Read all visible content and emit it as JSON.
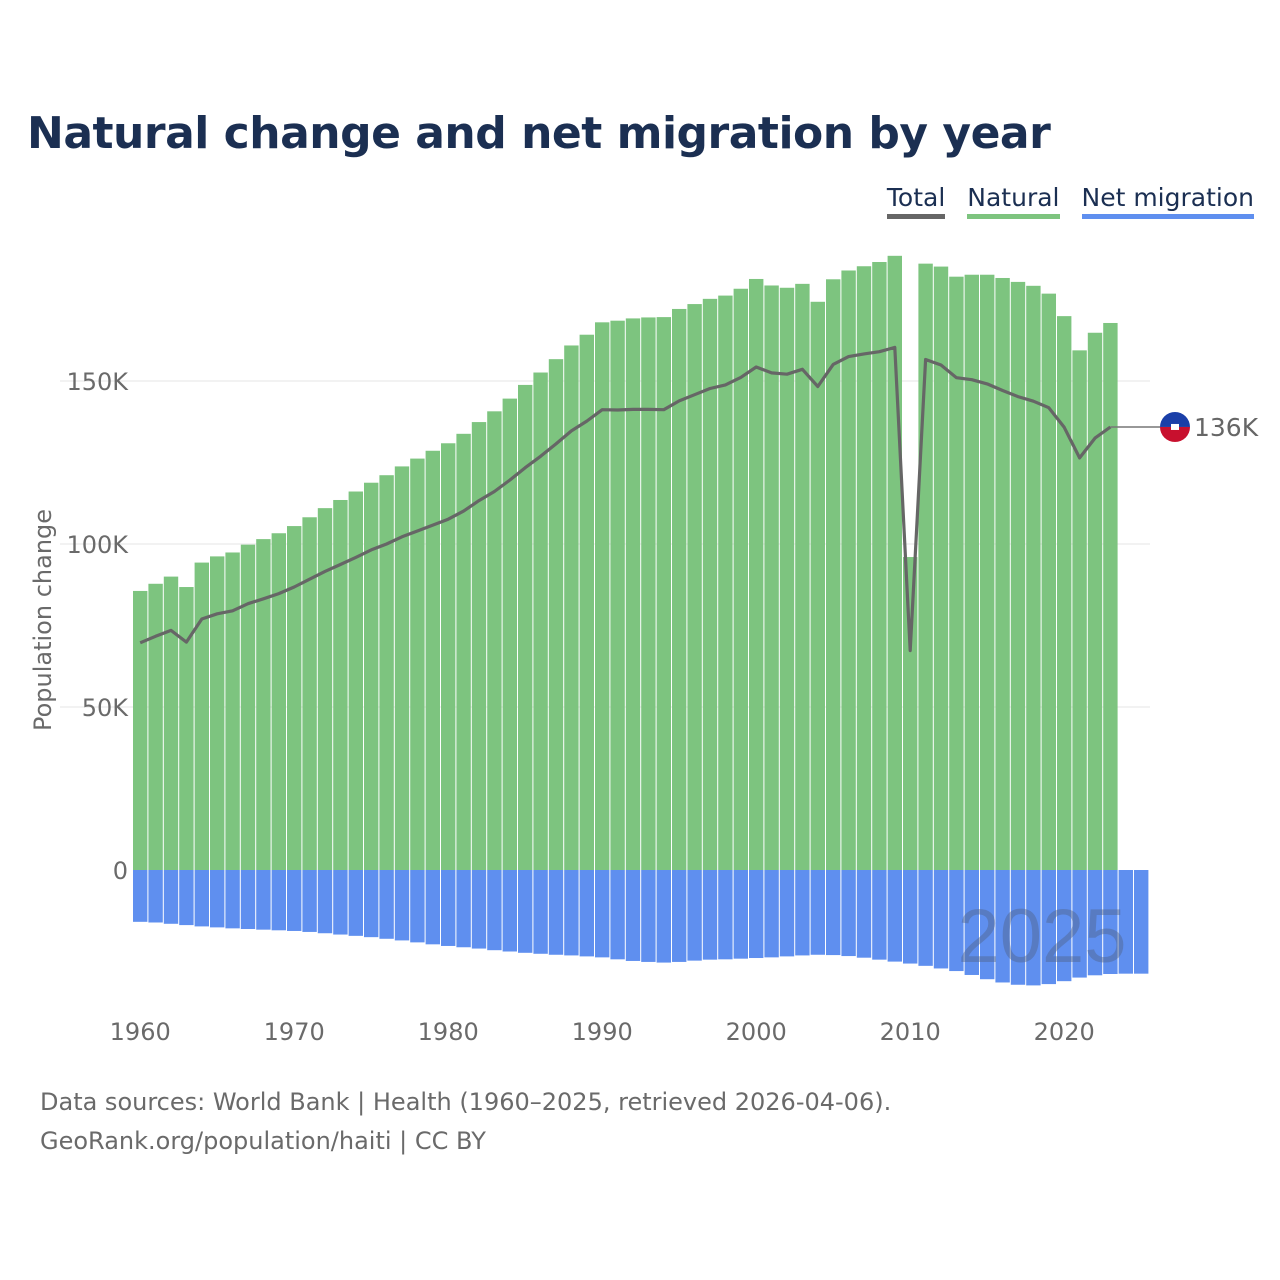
{
  "title": "Natural change and net migration by year",
  "legend": {
    "total": "Total",
    "natural": "Natural",
    "net_migration": "Net migration"
  },
  "colors": {
    "total": "#666666",
    "natural": "#7dc47f",
    "net_migration": "#5f8fef",
    "title": "#1b2f52"
  },
  "footer": {
    "source": "Data sources: World Bank | Health (1960–2025, retrieved 2026-04-06).",
    "credit": "GeoRank.org/population/haiti | CC BY"
  },
  "watermark": "2025",
  "end_label": "136K",
  "flag_icon": "haiti-flag-icon",
  "chart_data": {
    "type": "bar",
    "title": "Natural change and net migration by year",
    "xlabel": "",
    "ylabel": "Population change",
    "ylim": [
      -36000,
      195000
    ],
    "yticks": [
      0,
      50000,
      100000,
      150000
    ],
    "ytick_labels": [
      "0",
      "50K",
      "100K",
      "150K"
    ],
    "xticks": [
      1960,
      1970,
      1980,
      1990,
      2000,
      2010,
      2020
    ],
    "xtick_labels": [
      "1960",
      "1970",
      "1980",
      "1990",
      "2000",
      "2010",
      "2020"
    ],
    "grid": true,
    "legend_position": "top-right",
    "stacked": true,
    "categories": [
      1960,
      1961,
      1962,
      1963,
      1964,
      1965,
      1966,
      1967,
      1968,
      1969,
      1970,
      1971,
      1972,
      1973,
      1974,
      1975,
      1976,
      1977,
      1978,
      1979,
      1980,
      1981,
      1982,
      1983,
      1984,
      1985,
      1986,
      1987,
      1988,
      1989,
      1990,
      1991,
      1992,
      1993,
      1994,
      1995,
      1996,
      1997,
      1998,
      1999,
      2000,
      2001,
      2002,
      2003,
      2004,
      2005,
      2006,
      2007,
      2008,
      2009,
      2010,
      2011,
      2012,
      2013,
      2014,
      2015,
      2016,
      2017,
      2018,
      2019,
      2020,
      2021,
      2022,
      2023,
      2024,
      2025
    ],
    "series": [
      {
        "name": "Natural",
        "type": "bar",
        "values": [
          85600,
          87800,
          90000,
          86800,
          94300,
          96200,
          97400,
          99800,
          101500,
          103300,
          105500,
          108200,
          111000,
          113500,
          116100,
          118800,
          121100,
          123800,
          126200,
          128600,
          130900,
          133800,
          137400,
          140700,
          144600,
          148800,
          152600,
          156700,
          160900,
          164200,
          168000,
          168500,
          169200,
          169500,
          169600,
          172100,
          173600,
          175200,
          176200,
          178300,
          181300,
          179300,
          178600,
          179800,
          174300,
          181200,
          183900,
          185200,
          186500,
          188400,
          96000,
          186000,
          185100,
          182000,
          182600,
          182600,
          181600,
          180400,
          179200,
          176800,
          169900,
          159400,
          164800,
          167800,
          null,
          null
        ]
      },
      {
        "name": "Net migration",
        "type": "bar",
        "values": [
          -15900,
          -16100,
          -16500,
          -16900,
          -17300,
          -17600,
          -17900,
          -18100,
          -18300,
          -18500,
          -18700,
          -19000,
          -19400,
          -19800,
          -20200,
          -20600,
          -21100,
          -21600,
          -22200,
          -22800,
          -23300,
          -23700,
          -24100,
          -24600,
          -25000,
          -25400,
          -25700,
          -26000,
          -26200,
          -26500,
          -26800,
          -27400,
          -27900,
          -28200,
          -28400,
          -28200,
          -27800,
          -27500,
          -27400,
          -27200,
          -27000,
          -26800,
          -26500,
          -26200,
          -26000,
          -26100,
          -26400,
          -26900,
          -27500,
          -28100,
          -28700,
          -29400,
          -30200,
          -31000,
          -32200,
          -33500,
          -34500,
          -35200,
          -35400,
          -35000,
          -34100,
          -33000,
          -32300,
          -31900,
          -31800,
          -31800
        ]
      },
      {
        "name": "Total",
        "type": "line",
        "values": [
          69700,
          71700,
          73500,
          69900,
          77000,
          78600,
          79500,
          81700,
          83200,
          84800,
          86800,
          89200,
          91600,
          93700,
          95900,
          98200,
          100000,
          102200,
          104000,
          105800,
          107600,
          110100,
          113300,
          116100,
          119600,
          123400,
          126900,
          130700,
          134700,
          137700,
          141200,
          141100,
          141300,
          141300,
          141200,
          143900,
          145800,
          147700,
          148800,
          151100,
          154300,
          152500,
          152100,
          153600,
          148300,
          155100,
          157500,
          158300,
          159000,
          160300,
          67300,
          156600,
          154900,
          151000,
          150400,
          149100,
          147100,
          145200,
          143800,
          141800,
          135800,
          126400,
          132500,
          135900,
          null,
          null
        ]
      }
    ]
  }
}
